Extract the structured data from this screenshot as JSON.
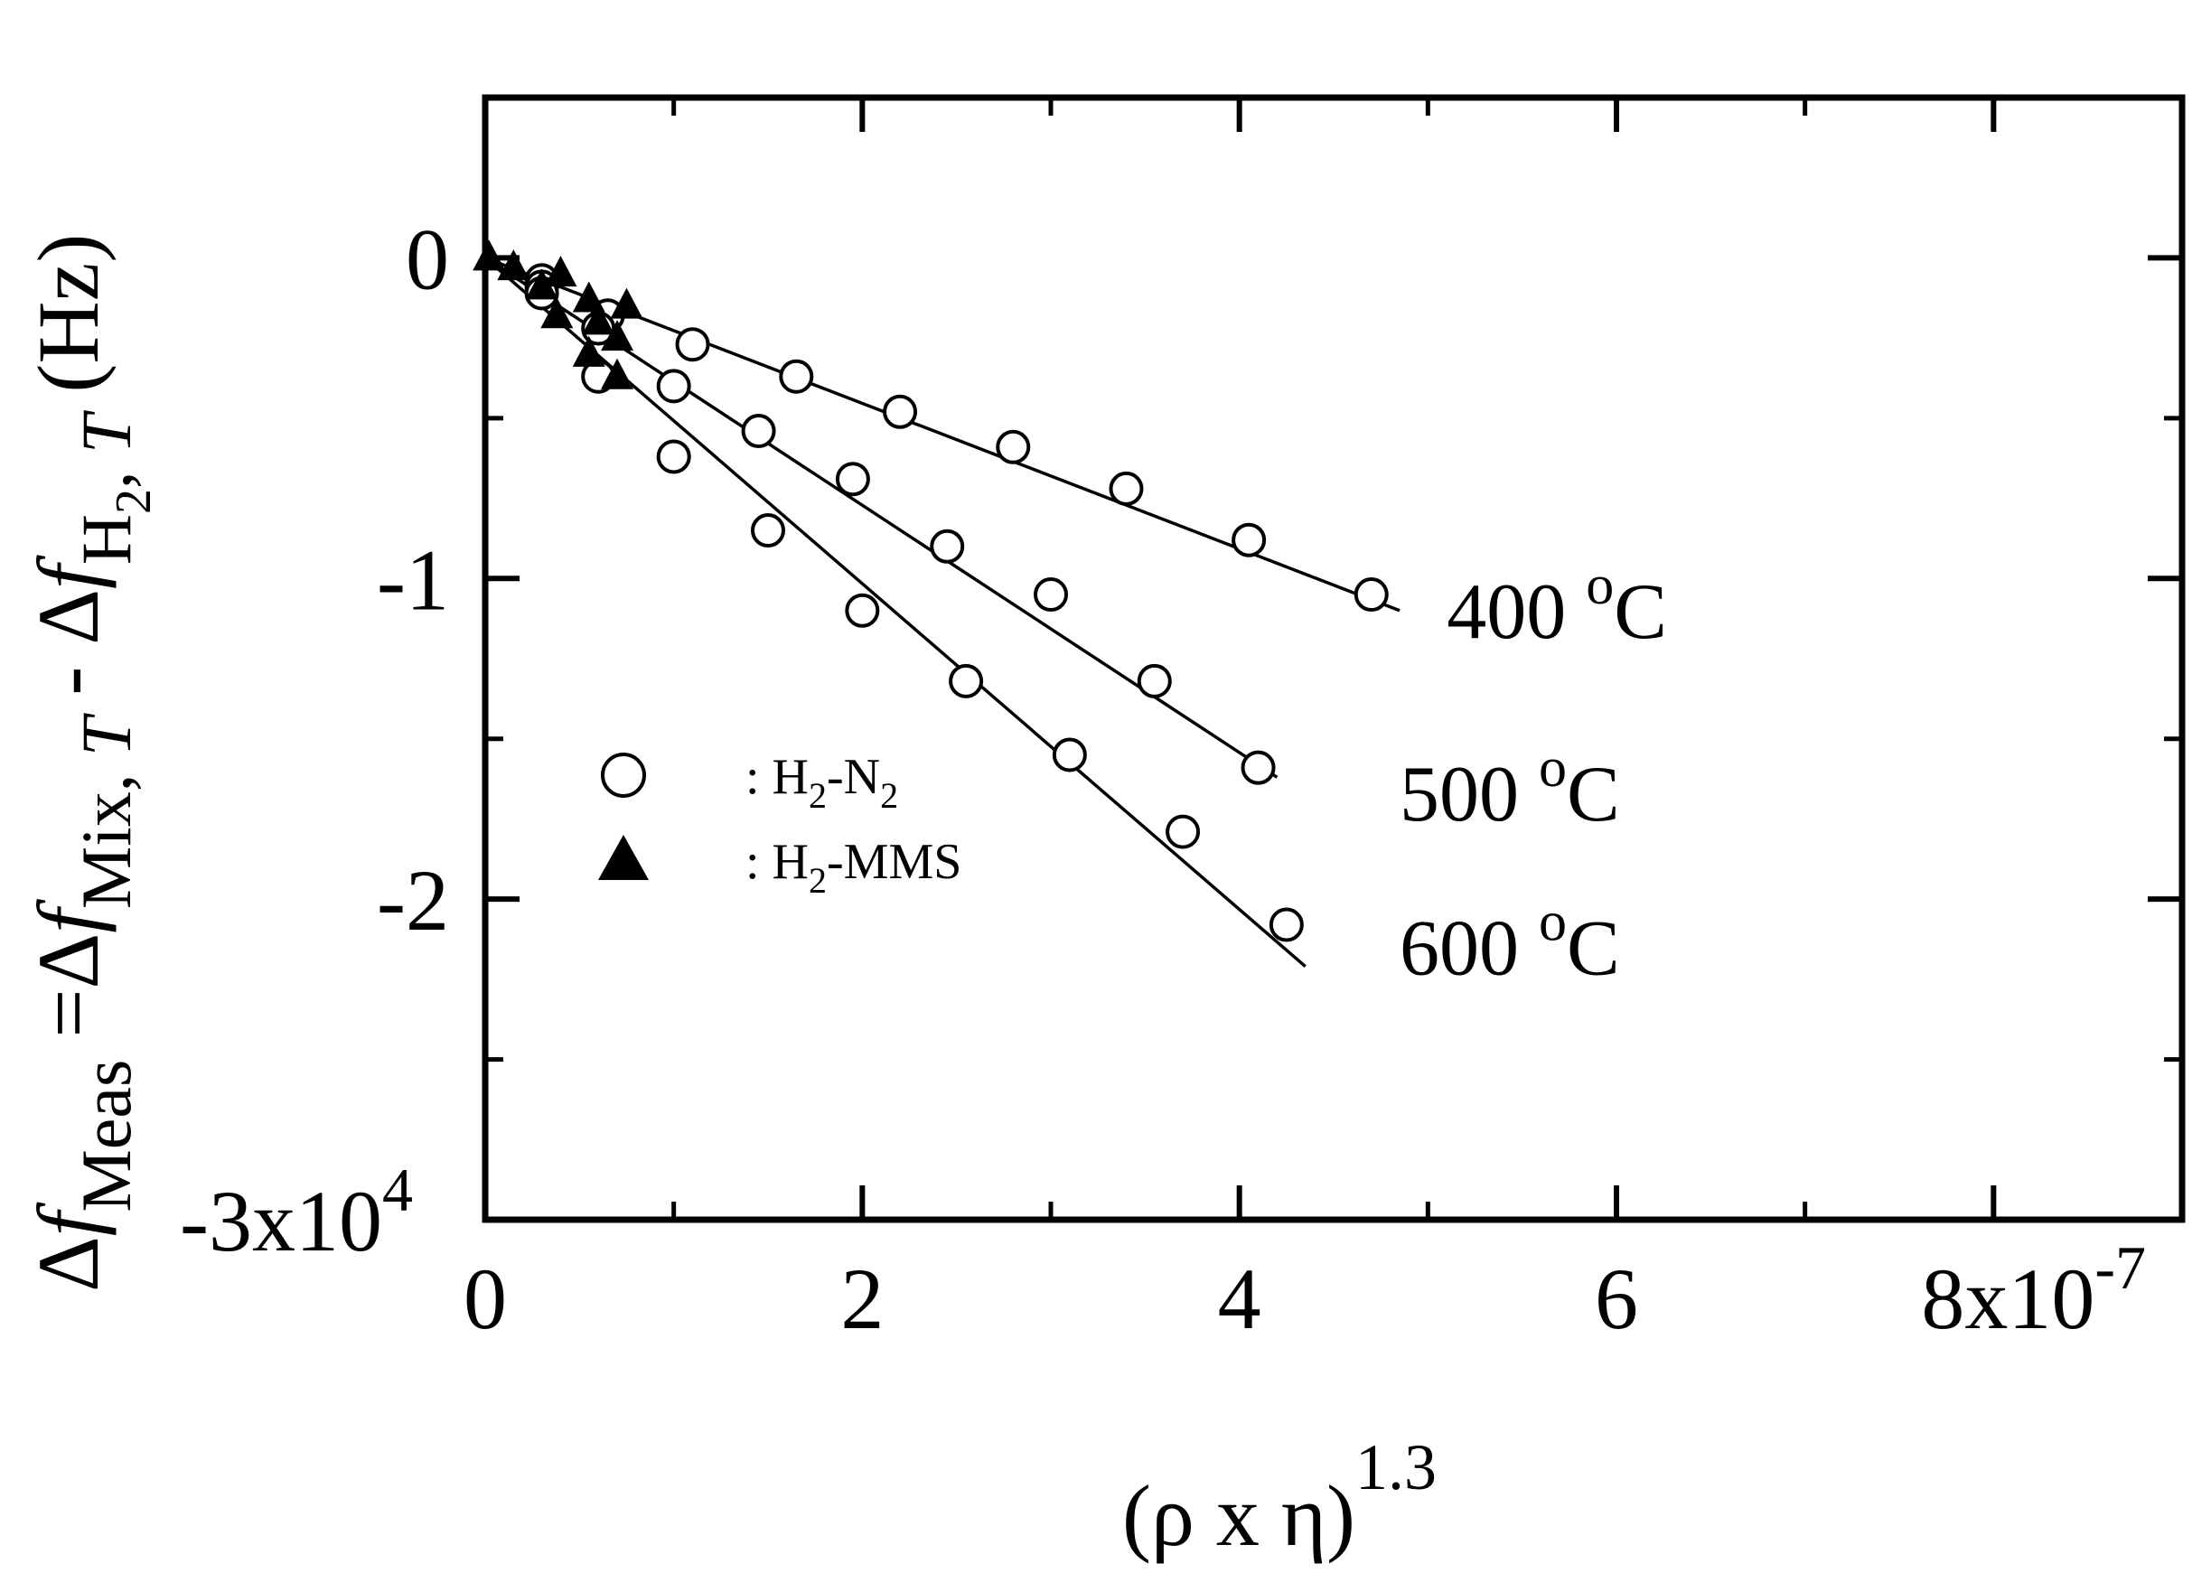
{
  "chart_data": {
    "type": "scatter",
    "xlabel": "(ρ x η)",
    "xlabel_exponent": "1.3",
    "ylabel": {
      "parts": [
        {
          "text": "Δ",
          "style": "normal"
        },
        {
          "text": "f",
          "style": "italic"
        },
        {
          "text": "Meas",
          "style": "sub"
        },
        {
          "text": " =Δ",
          "style": "normal"
        },
        {
          "text": "f",
          "style": "italic"
        },
        {
          "text": "Mix, ",
          "style": "sub"
        },
        {
          "text": "T",
          "style": "sub-italic"
        },
        {
          "text": " - Δ",
          "style": "normal"
        },
        {
          "text": "f",
          "style": "italic"
        },
        {
          "text": "H",
          "style": "sub"
        },
        {
          "text": "2",
          "style": "subsub"
        },
        {
          "text": ", ",
          "style": "sub"
        },
        {
          "text": "T",
          "style": "sub-italic"
        },
        {
          "text": " (Hz)",
          "style": "normal"
        }
      ]
    },
    "xlim": [
      0,
      9e-07
    ],
    "ylim": [
      -30000,
      5000
    ],
    "x_ticks": [
      {
        "value": 0,
        "label": "0"
      },
      {
        "value": 2e-07,
        "label": "2"
      },
      {
        "value": 4e-07,
        "label": "4"
      },
      {
        "value": 6e-07,
        "label": "6"
      },
      {
        "value": 8e-07,
        "label": "8x10",
        "exponent": "-7"
      }
    ],
    "y_ticks": [
      {
        "value": 0,
        "label": "0"
      },
      {
        "value": -10000,
        "label": "-1"
      },
      {
        "value": -20000,
        "label": "-2"
      },
      {
        "value": -30000,
        "label": "-3x10",
        "exponent": "4"
      }
    ],
    "minor_x_ticks": [
      1e-07,
      3e-07,
      5e-07,
      7e-07
    ],
    "minor_y_ticks": [
      -5000,
      -15000,
      -25000
    ],
    "grid": false,
    "legend": {
      "placement": "center-left",
      "entries": [
        {
          "marker": "circle",
          "parts": [
            {
              "text": ": H",
              "style": "normal"
            },
            {
              "text": "2",
              "style": "sub"
            },
            {
              "text": "-N",
              "style": "normal"
            },
            {
              "text": "2",
              "style": "sub"
            }
          ]
        },
        {
          "marker": "triangle",
          "parts": [
            {
              "text": ": H",
              "style": "normal"
            },
            {
              "text": "2",
              "style": "sub"
            },
            {
              "text": "-MMS",
              "style": "normal"
            }
          ]
        }
      ]
    },
    "series": [
      {
        "name": "400 oC",
        "label": "400 ",
        "label_sup": "o",
        "label_unit": "C",
        "marker": "circle",
        "fit_line": [
          [
            0,
            0
          ],
          [
            4.85e-07,
            -11000
          ]
        ],
        "label_at": [
          5.1e-07,
          -11000
        ],
        "points": [
          [
            3e-08,
            -700
          ],
          [
            6.5e-08,
            -1800
          ],
          [
            1.1e-07,
            -2700
          ],
          [
            1.65e-07,
            -3700
          ],
          [
            2.2e-07,
            -4800
          ],
          [
            2.8e-07,
            -5900
          ],
          [
            3.4e-07,
            -7200
          ],
          [
            4.05e-07,
            -8800
          ],
          [
            4.7e-07,
            -10500
          ]
        ]
      },
      {
        "name": "500 oC",
        "label": "500 ",
        "label_sup": "o",
        "label_unit": "C",
        "marker": "circle",
        "fit_line": [
          [
            0,
            0
          ],
          [
            4.2e-07,
            -16200
          ]
        ],
        "label_at": [
          4.85e-07,
          -16700
        ],
        "points": [
          [
            3e-08,
            -900
          ],
          [
            6e-08,
            -2200
          ],
          [
            1e-07,
            -4000
          ],
          [
            1.45e-07,
            -5400
          ],
          [
            1.95e-07,
            -6900
          ],
          [
            2.45e-07,
            -9000
          ],
          [
            3e-07,
            -10500
          ],
          [
            3.55e-07,
            -13200
          ],
          [
            4.1e-07,
            -15900
          ]
        ]
      },
      {
        "name": "600 oC",
        "label": "600 ",
        "label_sup": "o",
        "label_unit": "C",
        "marker": "circle",
        "fit_line": [
          [
            0,
            0
          ],
          [
            4.35e-07,
            -22100
          ]
        ],
        "label_at": [
          4.85e-07,
          -21500
        ],
        "points": [
          [
            3e-08,
            -1100
          ],
          [
            6e-08,
            -3700
          ],
          [
            1e-07,
            -6200
          ],
          [
            1.5e-07,
            -8500
          ],
          [
            2e-07,
            -11000
          ],
          [
            2.55e-07,
            -13200
          ],
          [
            3.1e-07,
            -15500
          ],
          [
            3.7e-07,
            -17900
          ],
          [
            4.25e-07,
            -20800
          ]
        ]
      },
      {
        "name": "H2-MMS",
        "marker": "triangle",
        "points": [
          [
            2e-09,
            0
          ],
          [
            1.5e-08,
            -300
          ],
          [
            3e-08,
            -900
          ],
          [
            4e-08,
            -500
          ],
          [
            5.5e-08,
            -1300
          ],
          [
            6e-08,
            -2000
          ],
          [
            7.5e-08,
            -1500
          ],
          [
            3.8e-08,
            -1800
          ],
          [
            5.5e-08,
            -3000
          ],
          [
            7e-08,
            -2500
          ],
          [
            7e-08,
            -3700
          ]
        ]
      }
    ]
  }
}
